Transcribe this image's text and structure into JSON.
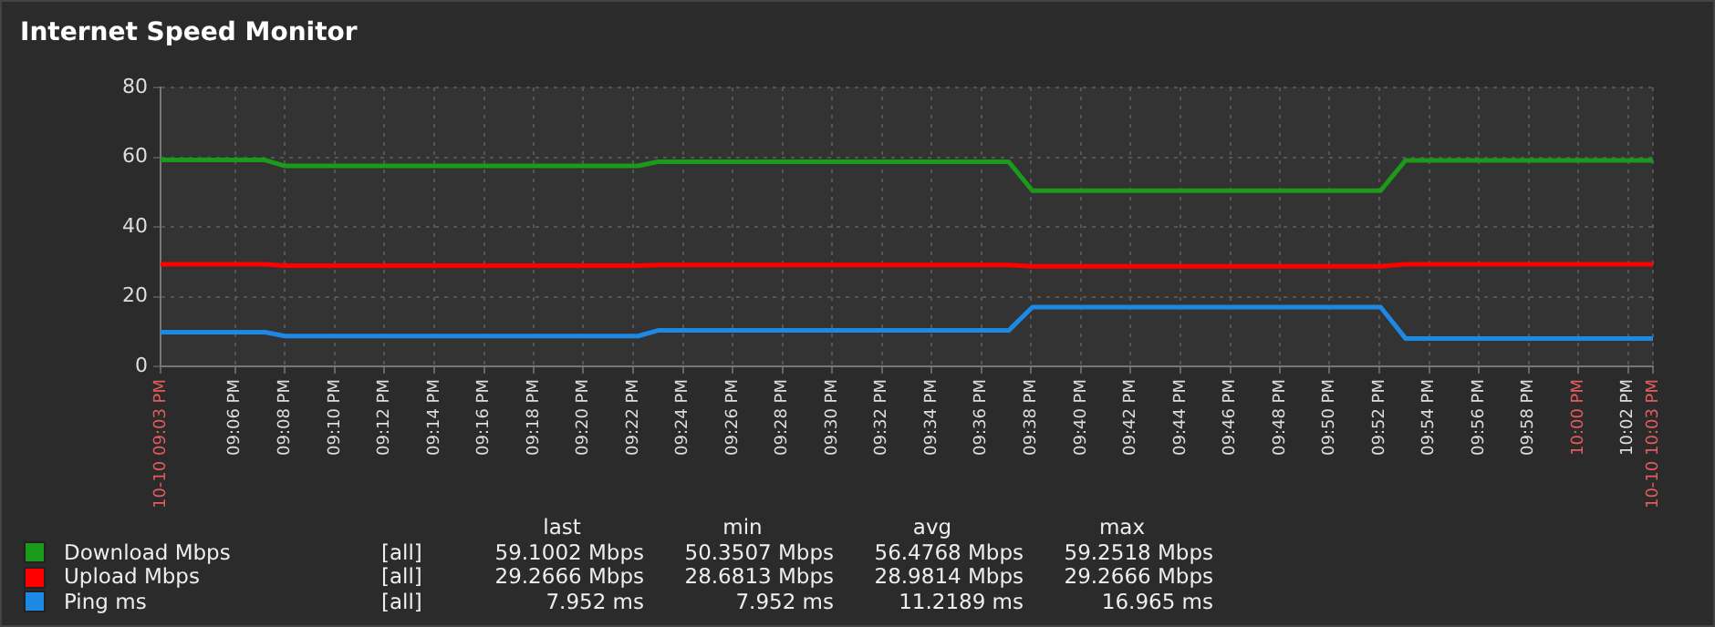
{
  "chart_data": {
    "type": "line",
    "title": "Internet Speed Monitor",
    "x": [
      21.05,
      21.12,
      21.1333,
      21.37,
      21.3833,
      21.6183,
      21.6342,
      21.8675,
      21.8842,
      22.05
    ],
    "series": [
      {
        "name": "Download Mbps",
        "color": "#1a9c1a",
        "values": [
          59.2,
          59.2,
          57.5,
          57.5,
          58.7,
          58.7,
          50.4,
          50.4,
          59.1,
          59.1
        ]
      },
      {
        "name": "Upload Mbps",
        "color": "#ff0000",
        "values": [
          29.3,
          29.3,
          28.9,
          28.9,
          29.1,
          29.1,
          28.7,
          28.7,
          29.3,
          29.3
        ]
      },
      {
        "name": "Ping ms",
        "color": "#1e88e5",
        "values": [
          9.8,
          9.8,
          8.7,
          8.7,
          10.3,
          10.3,
          17.0,
          17.0,
          8.0,
          8.0
        ]
      }
    ],
    "xlim": [
      21.05,
      22.05
    ],
    "xticks": [
      {
        "value": 21.05,
        "label": "10-10 09:03 PM"
      },
      {
        "value": 21.1,
        "label": "09:06 PM"
      },
      {
        "value": 21.1333,
        "label": "09:08 PM"
      },
      {
        "value": 21.1667,
        "label": "09:10 PM"
      },
      {
        "value": 21.2,
        "label": "09:12 PM"
      },
      {
        "value": 21.2333,
        "label": "09:14 PM"
      },
      {
        "value": 21.2667,
        "label": "09:16 PM"
      },
      {
        "value": 21.3,
        "label": "09:18 PM"
      },
      {
        "value": 21.3333,
        "label": "09:20 PM"
      },
      {
        "value": 21.3667,
        "label": "09:22 PM"
      },
      {
        "value": 21.4,
        "label": "09:24 PM"
      },
      {
        "value": 21.4333,
        "label": "09:26 PM"
      },
      {
        "value": 21.4667,
        "label": "09:28 PM"
      },
      {
        "value": 21.5,
        "label": "09:30 PM"
      },
      {
        "value": 21.5333,
        "label": "09:32 PM"
      },
      {
        "value": 21.5667,
        "label": "09:34 PM"
      },
      {
        "value": 21.6,
        "label": "09:36 PM"
      },
      {
        "value": 21.6333,
        "label": "09:38 PM"
      },
      {
        "value": 21.6667,
        "label": "09:40 PM"
      },
      {
        "value": 21.7,
        "label": "09:42 PM"
      },
      {
        "value": 21.7333,
        "label": "09:44 PM"
      },
      {
        "value": 21.7667,
        "label": "09:46 PM"
      },
      {
        "value": 21.8,
        "label": "09:48 PM"
      },
      {
        "value": 21.8333,
        "label": "09:50 PM"
      },
      {
        "value": 21.8667,
        "label": "09:52 PM"
      },
      {
        "value": 21.9,
        "label": "09:54 PM"
      },
      {
        "value": 21.9333,
        "label": "09:56 PM"
      },
      {
        "value": 21.9667,
        "label": "09:58 PM"
      },
      {
        "value": 22,
        "label": "10:00 PM"
      },
      {
        "value": 22.0333,
        "label": "10:02 PM"
      },
      {
        "value": 22.05,
        "label": "10-10 10:03 PM"
      }
    ],
    "ylim": [
      0,
      80
    ],
    "yticks": [
      0,
      20,
      40,
      60,
      80
    ],
    "grid": true,
    "legend": "bottom",
    "marker": "none",
    "line_style": "solid",
    "annotations": [
      "last",
      "min",
      "avg",
      "max",
      "[all]",
      "59.1002 Mbps",
      "50.3507 Mbps",
      "56.4768 Mbps",
      "59.2518 Mbps",
      "[all]",
      "29.2666 Mbps",
      "28.6813 Mbps",
      "28.9814 Mbps",
      "29.2666 Mbps",
      "[all]",
      "7.952 ms",
      "7.952 ms",
      "11.2189 ms",
      "16.965 ms"
    ]
  }
}
